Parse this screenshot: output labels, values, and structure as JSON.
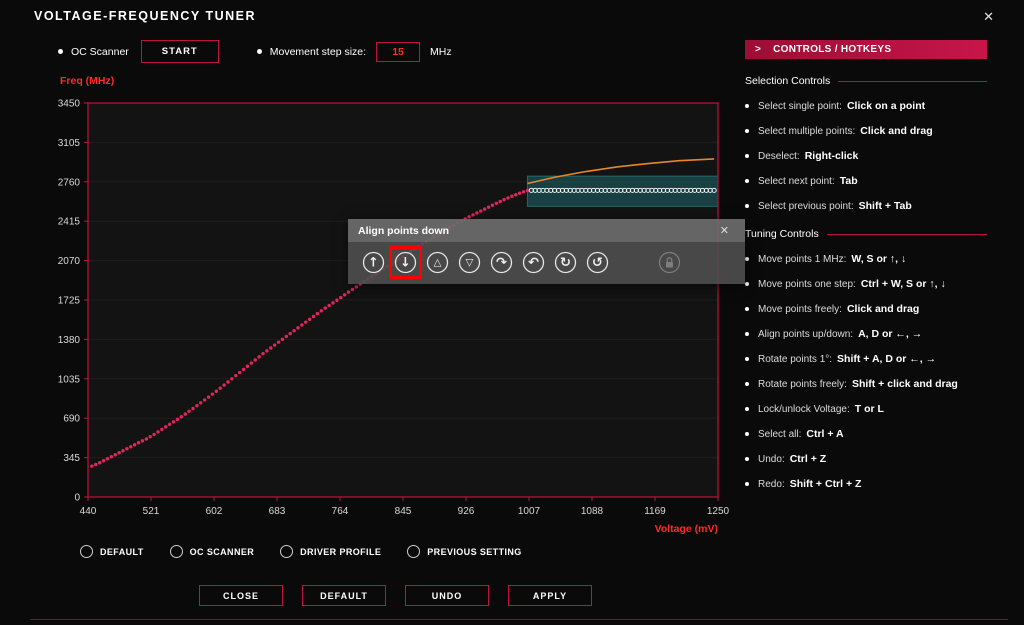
{
  "window": {
    "title": "VOLTAGE-FREQUENCY TUNER",
    "close_icon": "✕"
  },
  "colors": {
    "accent": "#c01440",
    "text_red": "#ff2a2a",
    "curve": "#e5255a",
    "boost": "#e8872a",
    "selection": "#1d6d72",
    "highlight": "#ff0000"
  },
  "toolbar": {
    "oc_scanner_label": "OC Scanner",
    "start_button": "START",
    "step_label": "Movement step size:",
    "step_value": "15",
    "step_unit": "MHz"
  },
  "hotkeys_panel": {
    "chevron": ">",
    "header": "CONTROLS / HOTKEYS",
    "sections": [
      {
        "title": "Selection Controls",
        "items": [
          {
            "label": "Select single point:",
            "keys": "Click on a point"
          },
          {
            "label": "Select multiple points:",
            "keys": "Click and drag"
          },
          {
            "label": "Deselect:",
            "keys": "Right-click"
          },
          {
            "label": "Select next point:",
            "keys": "Tab"
          },
          {
            "label": "Select previous point:",
            "keys": "Shift + Tab"
          }
        ]
      },
      {
        "title": "Tuning Controls",
        "items": [
          {
            "label": "Move points 1 MHz:",
            "keys": "W, S or ↑, ↓"
          },
          {
            "label": "Move points one step:",
            "keys": "Ctrl + W, S or ↑, ↓"
          },
          {
            "label": "Move points freely:",
            "keys": "Click and drag"
          },
          {
            "label": "Align points up/down:",
            "keys": "A, D or ←, →"
          },
          {
            "label": "Rotate points 1°:",
            "keys": "Shift + A, D or ←, →"
          },
          {
            "label": "Rotate points freely:",
            "keys": "Shift + click and drag"
          },
          {
            "label": "Lock/unlock Voltage:",
            "keys": "T or L"
          },
          {
            "label": "Select all:",
            "keys": "Ctrl + A"
          },
          {
            "label": "Undo:",
            "keys": "Ctrl + Z"
          },
          {
            "label": "Redo:",
            "keys": "Shift + Ctrl + Z"
          }
        ]
      }
    ]
  },
  "align_popup": {
    "title": "Align points down",
    "close_icon": "✕",
    "icons": [
      {
        "name": "align-points-up-icon",
        "glyph": "↑",
        "highlighted": false,
        "disabled": false
      },
      {
        "name": "align-points-down-icon",
        "glyph": "↓",
        "highlighted": true,
        "disabled": false
      },
      {
        "name": "move-step-up-icon",
        "glyph": "△",
        "highlighted": false,
        "disabled": false
      },
      {
        "name": "move-step-down-icon",
        "glyph": "▽",
        "highlighted": false,
        "disabled": false
      },
      {
        "name": "rotate-cw-icon",
        "glyph": "↷",
        "highlighted": false,
        "disabled": false
      },
      {
        "name": "rotate-ccw-icon",
        "glyph": "↶",
        "highlighted": false,
        "disabled": false
      },
      {
        "name": "redo-rotate-icon",
        "glyph": "↻",
        "highlighted": false,
        "disabled": false
      },
      {
        "name": "undo-rotate-icon",
        "glyph": "↺",
        "highlighted": false,
        "disabled": false
      },
      {
        "name": "lock-voltage-icon",
        "glyph": "lock",
        "highlighted": false,
        "disabled": true
      }
    ]
  },
  "footer": {
    "radios": [
      {
        "name": "radio-default",
        "label": "DEFAULT",
        "selected": false
      },
      {
        "name": "radio-oc-scanner",
        "label": "OC SCANNER",
        "selected": false
      },
      {
        "name": "radio-driver-profile",
        "label": "DRIVER PROFILE",
        "selected": false
      },
      {
        "name": "radio-previous-setting",
        "label": "PREVIOUS SETTING",
        "selected": false
      }
    ],
    "buttons": [
      {
        "name": "close-button",
        "label": "CLOSE"
      },
      {
        "name": "default-button",
        "label": "DEFAULT"
      },
      {
        "name": "undo-button",
        "label": "UNDO"
      },
      {
        "name": "apply-button",
        "label": "APPLY"
      }
    ]
  },
  "chart_data": {
    "type": "scatter",
    "title": "",
    "xlabel": "Voltage (mV)",
    "ylabel": "Freq (MHz)",
    "xlim": [
      440,
      1250
    ],
    "ylim": [
      0,
      3450
    ],
    "x_ticks": [
      440,
      521,
      602,
      683,
      764,
      845,
      926,
      1007,
      1088,
      1169,
      1250
    ],
    "y_ticks": [
      0,
      345,
      690,
      1035,
      1380,
      1725,
      2070,
      2415,
      2760,
      3105,
      3450
    ],
    "grid": "horizontal-faint",
    "legend": "none",
    "series": [
      {
        "name": "vf-curve",
        "color": "#e5255a",
        "marker": "dot",
        "points": [
          [
            445,
            270
          ],
          [
            455,
            300
          ],
          [
            465,
            335
          ],
          [
            475,
            370
          ],
          [
            485,
            405
          ],
          [
            495,
            440
          ],
          [
            505,
            475
          ],
          [
            515,
            508
          ],
          [
            525,
            548
          ],
          [
            535,
            592
          ],
          [
            545,
            636
          ],
          [
            555,
            680
          ],
          [
            565,
            726
          ],
          [
            575,
            775
          ],
          [
            585,
            825
          ],
          [
            595,
            875
          ],
          [
            605,
            926
          ],
          [
            615,
            980
          ],
          [
            625,
            1035
          ],
          [
            635,
            1090
          ],
          [
            645,
            1145
          ],
          [
            655,
            1200
          ],
          [
            665,
            1255
          ],
          [
            675,
            1305
          ],
          [
            685,
            1356
          ],
          [
            695,
            1406
          ],
          [
            705,
            1456
          ],
          [
            715,
            1506
          ],
          [
            725,
            1556
          ],
          [
            735,
            1606
          ],
          [
            745,
            1654
          ],
          [
            755,
            1700
          ],
          [
            765,
            1746
          ],
          [
            775,
            1794
          ],
          [
            785,
            1840
          ],
          [
            795,
            1886
          ],
          [
            805,
            1930
          ],
          [
            815,
            1975
          ],
          [
            825,
            2020
          ],
          [
            835,
            2063
          ],
          [
            845,
            2106
          ],
          [
            855,
            2150
          ],
          [
            865,
            2194
          ],
          [
            875,
            2238
          ],
          [
            885,
            2280
          ],
          [
            895,
            2320
          ],
          [
            905,
            2360
          ],
          [
            915,
            2400
          ],
          [
            925,
            2436
          ],
          [
            935,
            2470
          ],
          [
            945,
            2504
          ],
          [
            955,
            2538
          ],
          [
            965,
            2572
          ],
          [
            975,
            2604
          ],
          [
            985,
            2634
          ],
          [
            995,
            2660
          ],
          [
            1005,
            2684
          ]
        ]
      },
      {
        "name": "selected-points",
        "color": "#ffffff",
        "marker": "open-circle",
        "run": {
          "v_start": 1010,
          "v_end": 1245,
          "v_step": 5,
          "freq_mhz": 2685
        }
      },
      {
        "name": "boost-curve",
        "color": "#e8872a",
        "marker": "line",
        "points": [
          [
            1005,
            2745
          ],
          [
            1040,
            2800
          ],
          [
            1080,
            2850
          ],
          [
            1120,
            2890
          ],
          [
            1160,
            2920
          ],
          [
            1200,
            2945
          ],
          [
            1245,
            2960
          ]
        ]
      }
    ],
    "selection_box": {
      "v0": 1005,
      "v1": 1250,
      "f0": 2545,
      "f1": 2810,
      "color": "#1d6d72"
    }
  }
}
